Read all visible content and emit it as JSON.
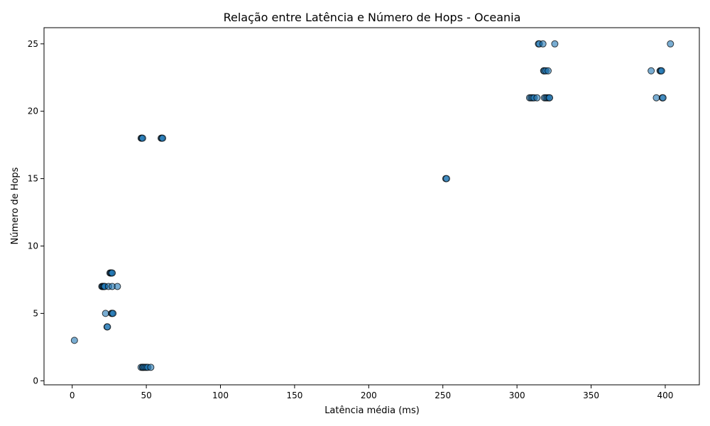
{
  "chart_data": {
    "type": "scatter",
    "title": "Relação entre Latência e Número de Hops - Oceania",
    "xlabel": "Latência média (ms)",
    "ylabel": "Número de Hops",
    "xlim": [
      -19,
      423
    ],
    "ylim": [
      -0.3,
      26.2
    ],
    "xticks": [
      0,
      50,
      100,
      150,
      200,
      250,
      300,
      350,
      400
    ],
    "yticks": [
      0,
      5,
      10,
      15,
      20,
      25
    ],
    "grid": false,
    "legend": "none",
    "marker_color": "#1f77b4",
    "series": [
      {
        "points": [
          [
            1.5,
            3
          ],
          [
            22.5,
            5
          ],
          [
            26.5,
            5
          ],
          [
            27,
            5
          ],
          [
            27.5,
            5
          ],
          [
            23.5,
            4
          ],
          [
            23.8,
            4
          ],
          [
            20,
            7
          ],
          [
            20.5,
            7
          ],
          [
            21,
            7
          ],
          [
            21.5,
            7
          ],
          [
            22,
            7
          ],
          [
            24.5,
            7
          ],
          [
            27,
            7
          ],
          [
            30.5,
            7
          ],
          [
            25.5,
            8
          ],
          [
            26,
            8
          ],
          [
            26.5,
            8
          ],
          [
            27,
            8
          ],
          [
            46.5,
            1
          ],
          [
            47.5,
            1
          ],
          [
            48,
            1
          ],
          [
            49,
            1
          ],
          [
            50,
            1
          ],
          [
            51,
            1
          ],
          [
            53,
            1
          ],
          [
            46.5,
            18
          ],
          [
            47,
            18
          ],
          [
            47.5,
            18
          ],
          [
            60,
            18
          ],
          [
            60.5,
            18
          ],
          [
            61,
            18
          ],
          [
            252,
            15
          ],
          [
            252.5,
            15
          ],
          [
            308.5,
            21
          ],
          [
            309.5,
            21
          ],
          [
            310.5,
            21
          ],
          [
            311.5,
            21
          ],
          [
            313.5,
            21
          ],
          [
            318.5,
            21
          ],
          [
            319.5,
            21
          ],
          [
            320.5,
            21
          ],
          [
            321.5,
            21
          ],
          [
            322,
            21
          ],
          [
            318,
            23
          ],
          [
            318.5,
            23
          ],
          [
            319.5,
            23
          ],
          [
            321,
            23
          ],
          [
            314.5,
            25
          ],
          [
            315,
            25
          ],
          [
            317.5,
            25
          ],
          [
            325.5,
            25
          ],
          [
            390.5,
            23
          ],
          [
            396.5,
            23
          ],
          [
            397,
            23
          ],
          [
            397.5,
            23
          ],
          [
            394,
            21
          ],
          [
            398,
            21
          ],
          [
            398.5,
            21
          ],
          [
            403.5,
            25
          ]
        ]
      }
    ]
  }
}
